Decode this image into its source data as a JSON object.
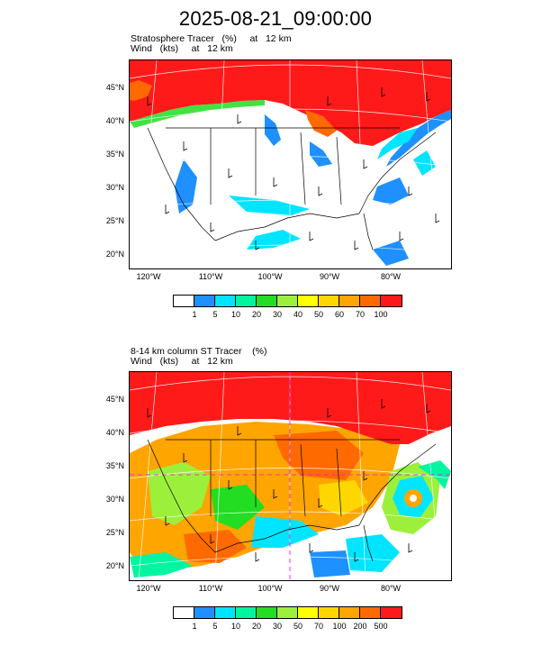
{
  "header": {
    "title": "2025-08-21_09:00:00"
  },
  "panels": [
    {
      "line1": "Stratosphere Tracer   (%)     at   12 km",
      "line2": "Wind   (kts)     at   12 km",
      "lat_labels": [
        "45°N",
        "40°N",
        "35°N",
        "30°N",
        "25°N",
        "20°N"
      ],
      "lon_labels": [
        "120°W",
        "110°W",
        "100°W",
        "90°W",
        "80°W"
      ],
      "colorbar": {
        "labels": [
          "1",
          "5",
          "10",
          "20",
          "30",
          "40",
          "50",
          "60",
          "70",
          "100"
        ],
        "colors": [
          "#ffffff",
          "#1e90ff",
          "#00e5ff",
          "#00f5a0",
          "#22dd22",
          "#9cf03c",
          "#ffff00",
          "#ffd700",
          "#ffa500",
          "#ff6a00",
          "#ff1a1a"
        ]
      }
    },
    {
      "line1": "8-14 km column ST Tracer    (%)",
      "line2": "Wind   (kts)     at   12 km",
      "lat_labels": [
        "45°N",
        "40°N",
        "35°N",
        "30°N",
        "25°N",
        "20°N"
      ],
      "lon_labels": [
        "120°W",
        "110°W",
        "100°W",
        "90°W",
        "80°W"
      ],
      "colorbar": {
        "labels": [
          "1",
          "5",
          "10",
          "20",
          "30",
          "50",
          "70",
          "100",
          "200",
          "500"
        ],
        "colors": [
          "#ffffff",
          "#1e90ff",
          "#00e5ff",
          "#00f5a0",
          "#22dd22",
          "#9cf03c",
          "#ffff00",
          "#ffd700",
          "#ffa500",
          "#ff6a00",
          "#ff1a1a"
        ]
      }
    }
  ]
}
